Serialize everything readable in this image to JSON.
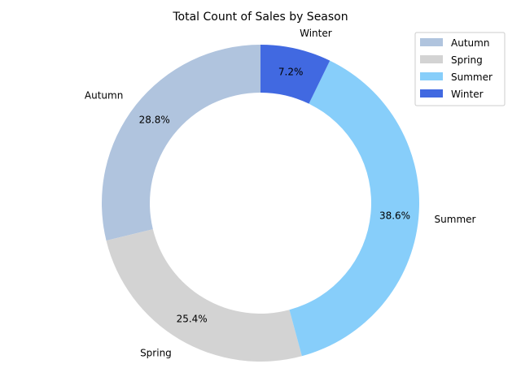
{
  "chart_data": {
    "type": "pie",
    "title": "Total Count of Sales by Season",
    "donut": true,
    "start_angle_deg": 90,
    "direction": "counterclockwise",
    "categories": [
      "Autumn",
      "Spring",
      "Summer",
      "Winter"
    ],
    "values": [
      28.8,
      25.4,
      38.6,
      7.2
    ],
    "value_labels": [
      "28.8%",
      "25.4%",
      "38.6%",
      "7.2%"
    ],
    "colors": [
      "#b0c4de",
      "#d3d3d3",
      "#87cefa",
      "#4169e1"
    ],
    "legend": {
      "placement": "top-right",
      "entries": [
        "Autumn",
        "Spring",
        "Summer",
        "Winter"
      ]
    }
  }
}
